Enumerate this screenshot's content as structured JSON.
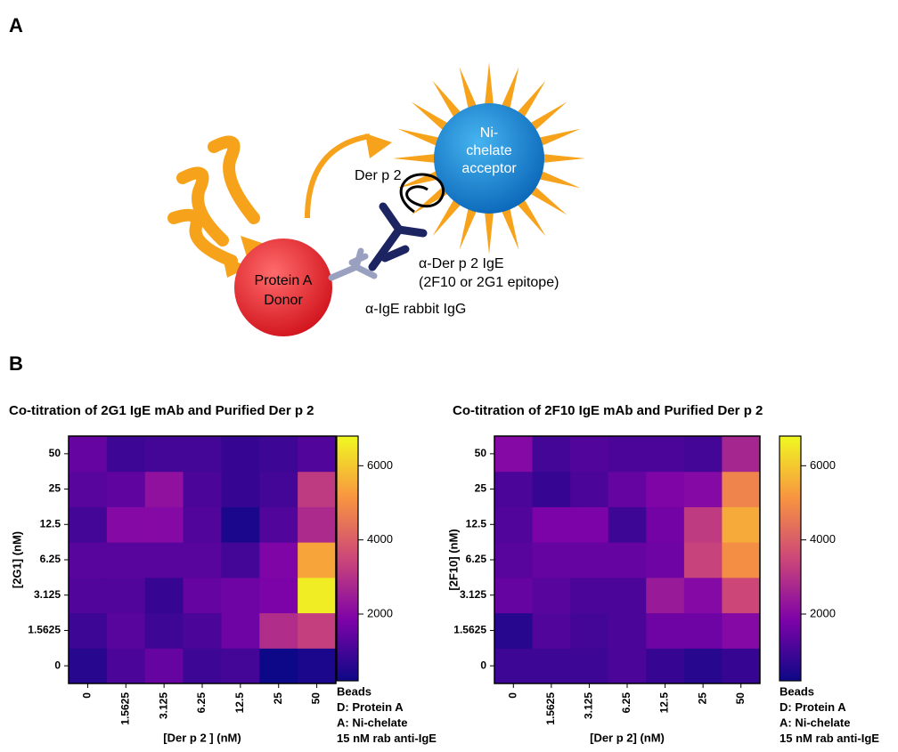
{
  "panel_labels": [
    "A",
    "B"
  ],
  "diagram": {
    "acceptor_label": [
      "Ni-",
      "chelate",
      "acceptor"
    ],
    "donor_label": [
      "Protein A",
      "Donor"
    ],
    "antigen_label": "Der p 2",
    "ige_label": [
      "α-Der p 2 IgE",
      "(2F10 or 2G1 epitope)"
    ],
    "igg_label": "α-IgE rabbit IgG"
  },
  "chart_data": [
    {
      "type": "heatmap",
      "title": "Co-titration of 2G1 IgE mAb and Purified Der p 2",
      "x_label": "[Der p 2 ] (nM)",
      "y_label": "[2G1] (nM)",
      "x": [
        "0",
        "1.5625",
        "3.125",
        "6.25",
        "12.5",
        "25",
        "50"
      ],
      "y": [
        "0",
        "1.5625",
        "3.125",
        "6.25",
        "12.5",
        "25",
        "50"
      ],
      "values": [
        [
          600,
          1100,
          1500,
          900,
          1000,
          200,
          400
        ],
        [
          900,
          1300,
          900,
          1100,
          1600,
          2900,
          3300
        ],
        [
          1200,
          1200,
          800,
          1500,
          1600,
          1800,
          6600
        ],
        [
          1300,
          1300,
          1300,
          1300,
          1000,
          1900,
          5400
        ],
        [
          1000,
          2000,
          2000,
          1200,
          400,
          1200,
          2800
        ],
        [
          1300,
          1400,
          2200,
          1100,
          800,
          1000,
          3200
        ],
        [
          1500,
          900,
          1000,
          1000,
          800,
          900,
          1200
        ]
      ],
      "zlim": [
        200,
        6800
      ],
      "zticks": [
        2000,
        4000,
        6000
      ],
      "colormap": "plasma",
      "annotations": [
        "Beads",
        "D: Protein A",
        "A: Ni-chelate",
        "15 nM rab anti-IgE"
      ]
    },
    {
      "type": "heatmap",
      "title": "Co-titration of 2F10 IgE mAb and Purified Der p 2",
      "x_label": "[Der p 2] (nM)",
      "y_label": "[2F10] (nM)",
      "x": [
        "0",
        "1.5625",
        "3.125",
        "6.25",
        "12.5",
        "25",
        "50"
      ],
      "y": [
        "0",
        "1.5625",
        "3.125",
        "6.25",
        "12.5",
        "25",
        "50"
      ],
      "values": [
        [
          900,
          900,
          900,
          1100,
          800,
          600,
          800
        ],
        [
          600,
          1200,
          1000,
          1100,
          1600,
          1600,
          2000
        ],
        [
          1500,
          1300,
          1100,
          1100,
          2400,
          2000,
          3500
        ],
        [
          1300,
          1500,
          1500,
          1500,
          1600,
          3400,
          5000
        ],
        [
          1200,
          1800,
          1800,
          900,
          1700,
          3200,
          5500
        ],
        [
          1100,
          800,
          1100,
          1500,
          1900,
          2000,
          4800
        ],
        [
          2000,
          1000,
          1200,
          1100,
          1100,
          1000,
          2700
        ]
      ],
      "zlim": [
        200,
        6800
      ],
      "zticks": [
        2000,
        4000,
        6000
      ],
      "colormap": "plasma",
      "annotations": [
        "Beads",
        "D: Protein A",
        "A: Ni-chelate",
        "15 nM rab anti-IgE"
      ]
    }
  ]
}
